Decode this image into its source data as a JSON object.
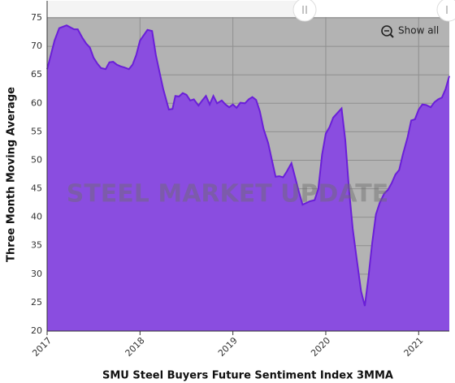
{
  "chart_data": {
    "type": "area",
    "title": "SMU Steel Buyers Future Sentiment Index 3MMA",
    "y_label": "Three Month Moving Average",
    "watermark": "STEEL MARKET UPDATE",
    "button": "Show all",
    "color": "#8a4de0",
    "line_color": "#6a1fd8",
    "background": "#b3b3b3",
    "grid": true,
    "xlim": [
      2017,
      2021.33
    ],
    "xticks": [
      2017,
      2018,
      2019,
      2020,
      2021
    ],
    "ylim": [
      20,
      78
    ],
    "yticks": [
      20,
      25,
      30,
      35,
      40,
      45,
      50,
      55,
      60,
      65,
      70,
      75
    ],
    "x": [
      2017.0,
      2017.04,
      2017.08,
      2017.13,
      2017.21,
      2017.29,
      2017.33,
      2017.38,
      2017.42,
      2017.46,
      2017.5,
      2017.54,
      2017.58,
      2017.63,
      2017.67,
      2017.71,
      2017.75,
      2017.79,
      2017.83,
      2017.88,
      2017.92,
      2017.96,
      2018.0,
      2018.08,
      2018.13,
      2018.17,
      2018.21,
      2018.25,
      2018.31,
      2018.35,
      2018.38,
      2018.42,
      2018.46,
      2018.5,
      2018.54,
      2018.58,
      2018.63,
      2018.67,
      2018.71,
      2018.75,
      2018.79,
      2018.83,
      2018.88,
      2018.92,
      2018.96,
      2019.0,
      2019.04,
      2019.08,
      2019.13,
      2019.17,
      2019.21,
      2019.25,
      2019.29,
      2019.33,
      2019.38,
      2019.42,
      2019.46,
      2019.5,
      2019.54,
      2019.58,
      2019.63,
      2019.67,
      2019.71,
      2019.75,
      2019.79,
      2019.83,
      2019.88,
      2019.92,
      2019.96,
      2020.0,
      2020.04,
      2020.08,
      2020.17,
      2020.21,
      2020.25,
      2020.29,
      2020.33,
      2020.38,
      2020.42,
      2020.46,
      2020.5,
      2020.54,
      2020.58,
      2020.63,
      2020.67,
      2020.71,
      2020.75,
      2020.79,
      2020.83,
      2020.88,
      2020.92,
      2020.96,
      2021.0,
      2021.04,
      2021.08,
      2021.13,
      2021.17,
      2021.21,
      2021.25,
      2021.29,
      2021.33
    ],
    "values": [
      66,
      68.5,
      71,
      73.2,
      73.7,
      73.0,
      73.0,
      71.5,
      70.5,
      69.8,
      68,
      67,
      66.2,
      66,
      67.2,
      67.3,
      66.8,
      66.5,
      66.3,
      66,
      66.8,
      68.5,
      71,
      72.9,
      72.7,
      68.5,
      65.5,
      62.5,
      58.9,
      59,
      61.3,
      61.2,
      61.8,
      61.5,
      60.5,
      60.7,
      59.6,
      60.5,
      61.3,
      59.8,
      61.3,
      60,
      60.5,
      59.8,
      59.3,
      59.8,
      59.2,
      60.1,
      60,
      60.7,
      61.1,
      60.6,
      58.6,
      55.5,
      53,
      50,
      47.1,
      47.2,
      47,
      48,
      49.5,
      47,
      44.5,
      42.2,
      42.5,
      42.8,
      43,
      45,
      51,
      54.7,
      55.8,
      57.5,
      59.1,
      53.5,
      45,
      38,
      33,
      27,
      24.4,
      29.5,
      35.5,
      40.5,
      42.5,
      44.2,
      44.8,
      46,
      47.5,
      48.3,
      51,
      54,
      57,
      57.2,
      58.9,
      59.8,
      59.7,
      59.3,
      60.2,
      60.7,
      61,
      62.5,
      64.8
    ]
  }
}
